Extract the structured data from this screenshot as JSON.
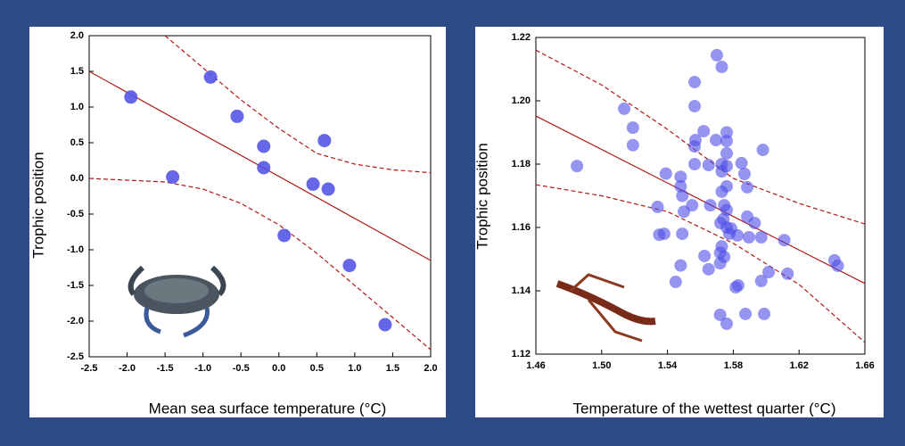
{
  "chart_data": [
    {
      "type": "scatter",
      "xlabel": "Mean sea surface temperature (°C)",
      "ylabel": "Trophic position",
      "xlim": [
        -2.5,
        2.0
      ],
      "ylim": [
        -2.5,
        2.0
      ],
      "xticks": [
        -2.5,
        {
          "value": -2,
          "label": "-2.0"
        },
        -1.5,
        {
          "value": -1,
          "label": "-1.0"
        },
        -0.5,
        {
          "value": 0,
          "label": "0.0"
        },
        0.5,
        {
          "value": 1,
          "label": "1.0"
        },
        1.5,
        {
          "value": 2,
          "label": "2.0"
        }
      ],
      "yticks": [
        -2.5,
        {
          "value": -2,
          "label": "-2.0"
        },
        -1.5,
        {
          "value": -1,
          "label": "-1.0"
        },
        -0.5,
        {
          "value": 0,
          "label": "0.0"
        },
        0.5,
        {
          "value": 1,
          "label": "1.0"
        },
        1.5,
        {
          "value": 2,
          "label": "2.0"
        }
      ],
      "points": {
        "color": "#5555e6",
        "x": [
          -1.95,
          -0.9,
          -1.4,
          -0.55,
          -0.2,
          -0.2,
          0.6,
          0.45,
          0.65,
          0.07,
          0.93,
          1.4
        ],
        "y": [
          1.14,
          1.42,
          0.02,
          0.87,
          0.45,
          0.15,
          0.53,
          -0.08,
          -0.15,
          -0.8,
          -1.22,
          -2.05
        ]
      },
      "fit": {
        "color": "#b01818",
        "x": [
          -2.5,
          2.0
        ],
        "y": [
          1.5,
          -1.15
        ]
      },
      "band_upper": {
        "color": "#b01818",
        "x": [
          -1.5,
          -1.0,
          -0.5,
          0,
          0.5,
          1.0,
          1.5,
          2.0
        ],
        "y": [
          2.0,
          1.55,
          1.1,
          0.7,
          0.35,
          0.2,
          0.12,
          0.08
        ]
      },
      "band_lower": {
        "color": "#b01818",
        "x": [
          -2.5,
          -1.5,
          -1.0,
          -0.5,
          0,
          0.5,
          1.0,
          1.5,
          2.0
        ],
        "y": [
          0.0,
          -0.05,
          -0.15,
          -0.35,
          -0.65,
          -1.05,
          -1.5,
          -1.95,
          -2.4
        ]
      }
    },
    {
      "type": "scatter",
      "xlabel": "Temperature of the wettest quarter (°C)",
      "ylabel": "Trophic position",
      "xlim": [
        1.46,
        1.66
      ],
      "ylim": [
        1.12,
        1.22
      ],
      "xticks": [
        1.46,
        {
          "value": 1.5,
          "label": "1.50"
        },
        1.54,
        1.58,
        1.62,
        1.66
      ],
      "yticks": [
        1.12,
        1.14,
        1.16,
        1.18,
        {
          "value": 1.2,
          "label": "1.20"
        },
        1.22
      ],
      "points": {
        "color": "#4f4fe8",
        "x": [
          1.485,
          1.5137,
          1.519,
          1.519,
          1.539,
          1.548,
          1.548,
          1.549,
          1.534,
          1.55,
          1.535,
          1.538,
          1.549,
          1.548,
          1.545,
          1.5565,
          1.5565,
          1.557,
          1.5565,
          1.5565,
          1.562,
          1.565,
          1.555,
          1.566,
          1.57,
          1.573,
          1.5695,
          1.573,
          1.573,
          1.576,
          1.576,
          1.576,
          1.576,
          1.576,
          1.573,
          1.5745,
          1.576,
          1.574,
          1.5722,
          1.576,
          1.5776,
          1.573,
          1.572,
          1.572,
          1.5745,
          1.572,
          1.576,
          1.5825,
          1.5815,
          1.583,
          1.585,
          1.5868,
          1.5885,
          1.5885,
          1.5895,
          1.593,
          1.5874,
          1.597,
          1.597,
          1.598,
          1.5988,
          1.6015,
          1.611,
          1.613,
          1.6415,
          1.6435,
          1.5625,
          1.565,
          1.5787
        ],
        "y": [
          1.1794,
          1.1975,
          1.1915,
          1.186,
          1.177,
          1.176,
          1.173,
          1.17,
          1.1665,
          1.165,
          1.1577,
          1.158,
          1.158,
          1.148,
          1.1428,
          1.2059,
          1.1983,
          1.1876,
          1.1856,
          1.18,
          1.1904,
          1.1797,
          1.167,
          1.167,
          1.2144,
          1.2107,
          1.1876,
          1.18,
          1.1777,
          1.19,
          1.1873,
          1.1834,
          1.1794,
          1.173,
          1.1713,
          1.167,
          1.1655,
          1.1626,
          1.1614,
          1.16,
          1.158,
          1.154,
          1.152,
          1.1487,
          1.1507,
          1.1324,
          1.1296,
          1.1575,
          1.1411,
          1.1417,
          1.1803,
          1.1769,
          1.1727,
          1.1634,
          1.1569,
          1.1614,
          1.1327,
          1.1569,
          1.1431,
          1.1845,
          1.1327,
          1.1459,
          1.156,
          1.1454,
          1.1496,
          1.1479,
          1.151,
          1.1468,
          1.1597
        ]
      },
      "fit": {
        "color": "#b01818",
        "x": [
          1.46,
          1.66
        ],
        "y": [
          1.1952,
          1.1423
        ]
      },
      "band_upper": {
        "color": "#b01818",
        "x": [
          1.46,
          1.5,
          1.54,
          1.58,
          1.62,
          1.66
        ],
        "y": [
          1.216,
          1.205,
          1.191,
          1.1755,
          1.1676,
          1.1611
        ]
      },
      "band_lower": {
        "color": "#b01818",
        "x": [
          1.46,
          1.5,
          1.54,
          1.58,
          1.62,
          1.66
        ],
        "y": [
          1.1735,
          1.17,
          1.165,
          1.155,
          1.142,
          1.1237
        ]
      }
    }
  ]
}
